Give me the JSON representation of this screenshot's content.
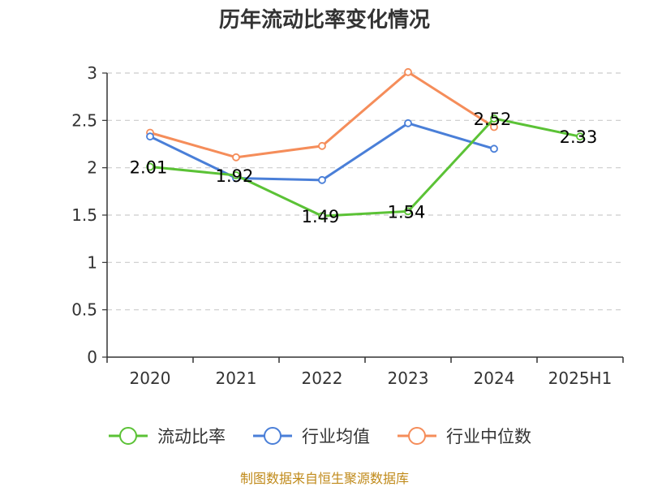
{
  "chart_data": {
    "type": "line",
    "title": "历年流动比率变化情况",
    "categories": [
      "2020",
      "2021",
      "2022",
      "2023",
      "2024",
      "2025H1"
    ],
    "ylim": [
      0,
      3
    ],
    "yticks": [
      "0",
      "0.5",
      "1",
      "1.5",
      "2",
      "2.5",
      "3"
    ],
    "ytick_values": [
      0,
      0.5,
      1,
      1.5,
      2,
      2.5,
      3
    ],
    "grid": true,
    "legend_position": "bottom",
    "series": [
      {
        "name": "流动比率",
        "color": "#5bc236",
        "values": [
          2.01,
          1.92,
          1.49,
          1.54,
          2.52,
          2.33
        ],
        "labels": [
          "2.01",
          "1.92",
          "1.49",
          "1.54",
          "2.52",
          "2.33"
        ]
      },
      {
        "name": "行业均值",
        "color": "#4a7fd8",
        "values": [
          2.33,
          1.89,
          1.87,
          2.47,
          2.2,
          null
        ]
      },
      {
        "name": "行业中位数",
        "color": "#f58d5a",
        "values": [
          2.37,
          2.11,
          2.23,
          3.01,
          2.43,
          null
        ]
      }
    ]
  },
  "source": "制图数据来自恒生聚源数据库"
}
